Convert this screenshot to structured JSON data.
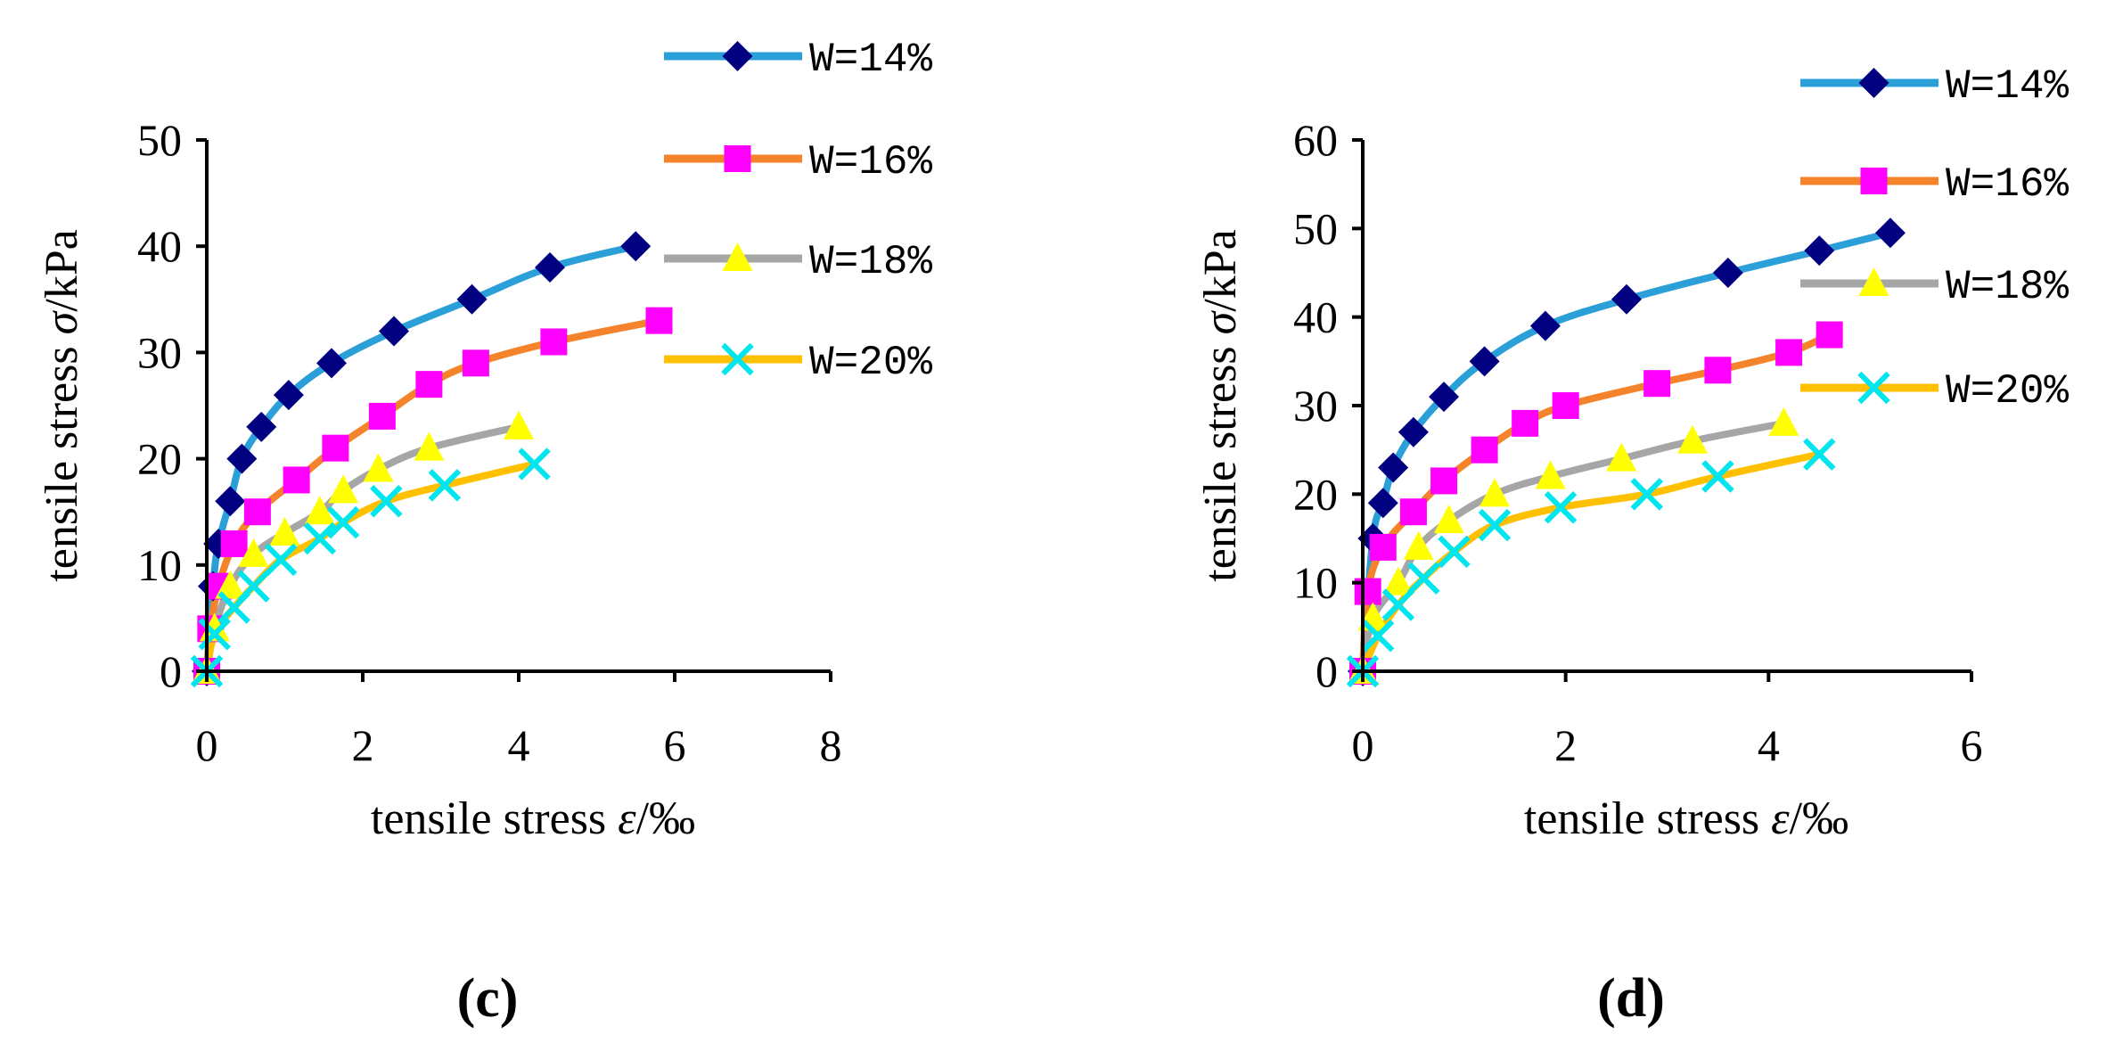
{
  "chart_data": [
    {
      "type": "line",
      "panel_label": "(c)",
      "xlabel_text": "tensile stress ",
      "xlabel_symbol": "ε",
      "xlabel_unit": "/‰",
      "ylabel_text": "tensile stress ",
      "ylabel_symbol": "σ",
      "ylabel_unit": "/kPa",
      "xlim": [
        0,
        8
      ],
      "ylim": [
        0,
        50
      ],
      "xticks": [
        0,
        2,
        4,
        6,
        8
      ],
      "yticks": [
        0,
        10,
        20,
        30,
        40,
        50
      ],
      "legend_position": "top-right",
      "series": [
        {
          "name": "W=14%",
          "line_color": "#2A9FD8",
          "marker": "diamond",
          "marker_color": "#000080",
          "x": [
            0,
            0.08,
            0.15,
            0.3,
            0.45,
            0.7,
            1.05,
            1.6,
            2.4,
            3.4,
            4.4,
            5.5
          ],
          "y": [
            0,
            8,
            12,
            16,
            20,
            23,
            26,
            29,
            32,
            35,
            38,
            40
          ]
        },
        {
          "name": "W=16%",
          "line_color": "#F4832B",
          "marker": "square",
          "marker_color": "#FF00FF",
          "x": [
            0,
            0.05,
            0.15,
            0.35,
            0.65,
            1.15,
            1.65,
            2.25,
            2.85,
            3.45,
            4.45,
            5.8
          ],
          "y": [
            0,
            4,
            8,
            12,
            15,
            18,
            21,
            24,
            27,
            29,
            31,
            33
          ]
        },
        {
          "name": "W=18%",
          "line_color": "#A6A6A6",
          "marker": "triangle",
          "marker_color": "#FFFF00",
          "x": [
            0,
            0.1,
            0.3,
            0.6,
            1.0,
            1.45,
            1.75,
            2.2,
            2.85,
            4.0
          ],
          "y": [
            0,
            4,
            8,
            11,
            13,
            15,
            17,
            19,
            21,
            23
          ]
        },
        {
          "name": "W=20%",
          "line_color": "#FFC000",
          "marker": "x",
          "marker_color": "#00E5EE",
          "x": [
            0,
            0.1,
            0.35,
            0.6,
            0.95,
            1.45,
            1.75,
            2.3,
            3.05,
            4.2
          ],
          "y": [
            0,
            3.5,
            6,
            8,
            10.5,
            12.5,
            14,
            16,
            17.5,
            19.5
          ]
        }
      ]
    },
    {
      "type": "line",
      "panel_label": "(d)",
      "xlabel_text": "tensile stress ",
      "xlabel_symbol": "ε",
      "xlabel_unit": "/‰",
      "ylabel_text": "tensile stress ",
      "ylabel_symbol": "σ",
      "ylabel_unit": "/kPa",
      "xlim": [
        0,
        6
      ],
      "ylim": [
        0,
        60
      ],
      "xticks": [
        0,
        2,
        4,
        6
      ],
      "yticks": [
        0,
        10,
        20,
        30,
        40,
        50,
        60
      ],
      "legend_position": "top-right",
      "series": [
        {
          "name": "W=14%",
          "line_color": "#2A9FD8",
          "marker": "diamond",
          "marker_color": "#000080",
          "x": [
            0,
            0.1,
            0.2,
            0.3,
            0.5,
            0.8,
            1.2,
            1.8,
            2.6,
            3.6,
            4.5,
            5.2
          ],
          "y": [
            0,
            15,
            19,
            23,
            27,
            31,
            35,
            39,
            42,
            45,
            47.5,
            49.5
          ]
        },
        {
          "name": "W=16%",
          "line_color": "#F4832B",
          "marker": "square",
          "marker_color": "#FF00FF",
          "x": [
            0,
            0.05,
            0.2,
            0.5,
            0.8,
            1.2,
            1.6,
            2.0,
            2.9,
            3.5,
            4.2,
            4.6
          ],
          "y": [
            0,
            9,
            14,
            18,
            21.5,
            25,
            28,
            30,
            32.5,
            34,
            36,
            38
          ]
        },
        {
          "name": "W=18%",
          "line_color": "#A6A6A6",
          "marker": "triangle",
          "marker_color": "#FFFF00",
          "x": [
            0,
            0.1,
            0.35,
            0.55,
            0.85,
            1.3,
            1.85,
            2.55,
            3.25,
            4.15
          ],
          "y": [
            0,
            6,
            10,
            14,
            17,
            20,
            22,
            24,
            26,
            28
          ]
        },
        {
          "name": "W=20%",
          "line_color": "#FFC000",
          "marker": "x",
          "marker_color": "#00E5EE",
          "x": [
            0,
            0.15,
            0.35,
            0.6,
            0.9,
            1.3,
            1.95,
            2.8,
            3.5,
            4.5
          ],
          "y": [
            0,
            4,
            7.5,
            10.5,
            13.5,
            16.5,
            18.5,
            20,
            22,
            24.5
          ]
        }
      ]
    }
  ]
}
